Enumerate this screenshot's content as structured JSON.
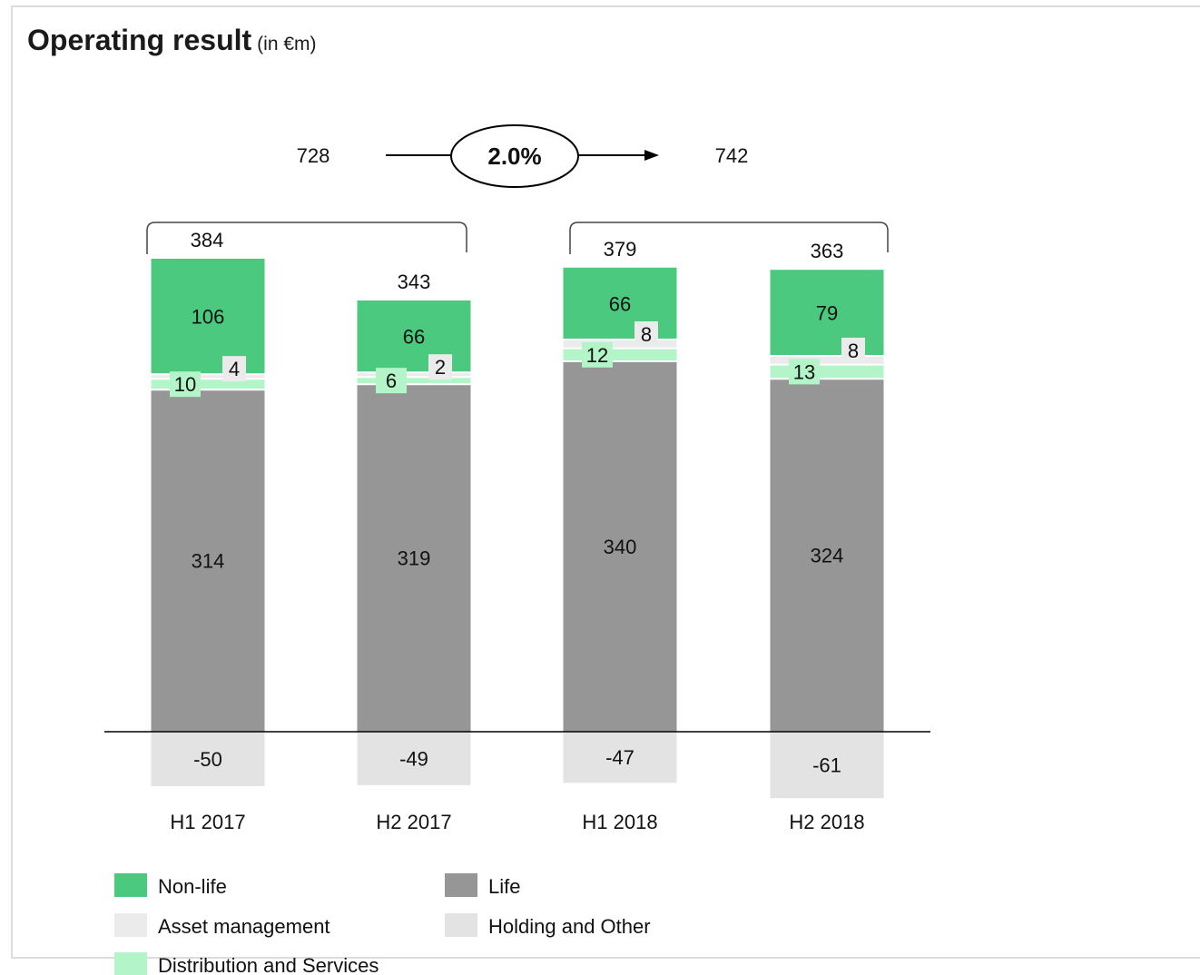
{
  "title": "Operating result",
  "title_unit": "(in €m)",
  "growth": {
    "from": "728",
    "to": "742",
    "rate": "2.0%"
  },
  "legend": [
    {
      "key": "nonlife",
      "label": "Non-life",
      "color": "#4bc97f"
    },
    {
      "key": "life",
      "label": "Life",
      "color": "#969696"
    },
    {
      "key": "asset",
      "label": "Asset management",
      "color": "#ebebeb"
    },
    {
      "key": "holding",
      "label": "Holding and Other",
      "color": "#e3e3e3"
    },
    {
      "key": "dist",
      "label": "Distribution and Services",
      "color": "#b3f5c8"
    }
  ],
  "chart_data": {
    "type": "bar",
    "stacked": true,
    "categories": [
      "H1 2017",
      "H2 2017",
      "H1 2018",
      "H2 2018"
    ],
    "totals": [
      384,
      343,
      379,
      363
    ],
    "series": [
      {
        "name": "Life",
        "key": "life",
        "values": [
          314,
          319,
          340,
          324
        ]
      },
      {
        "name": "Distribution and Services",
        "key": "dist",
        "values": [
          10,
          6,
          12,
          13
        ]
      },
      {
        "name": "Asset management",
        "key": "asset",
        "values": [
          4,
          2,
          8,
          8
        ]
      },
      {
        "name": "Non-life",
        "key": "nonlife",
        "values": [
          106,
          66,
          66,
          79
        ]
      },
      {
        "name": "Holding and Other",
        "key": "holding",
        "values": [
          -50,
          -49,
          -47,
          -61
        ]
      }
    ]
  }
}
